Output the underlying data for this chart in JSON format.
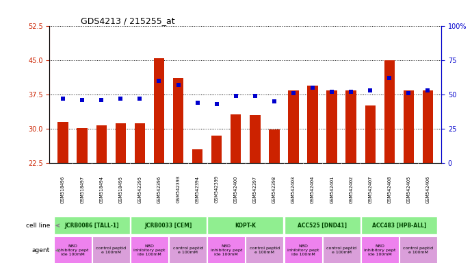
{
  "title": "GDS4213 / 215255_at",
  "samples": [
    "GSM518496",
    "GSM518497",
    "GSM518494",
    "GSM518495",
    "GSM542395",
    "GSM542396",
    "GSM542393",
    "GSM542394",
    "GSM542399",
    "GSM542400",
    "GSM542397",
    "GSM542398",
    "GSM542403",
    "GSM542404",
    "GSM542401",
    "GSM542402",
    "GSM542407",
    "GSM542408",
    "GSM542405",
    "GSM542406"
  ],
  "counts": [
    31.5,
    30.2,
    30.8,
    31.2,
    31.2,
    45.5,
    41.2,
    25.5,
    28.5,
    33.2,
    33.0,
    29.8,
    38.5,
    39.5,
    38.5,
    38.5,
    35.2,
    45.0,
    38.5,
    38.5
  ],
  "percentiles": [
    47,
    46,
    46,
    47,
    47,
    60,
    57,
    44,
    43,
    49,
    49,
    45,
    51,
    55,
    52,
    52,
    53,
    62,
    51,
    53
  ],
  "ylim_left": [
    22.5,
    52.5
  ],
  "yticks_left": [
    22.5,
    30.0,
    37.5,
    45.0,
    52.5
  ],
  "ylim_right": [
    0,
    100
  ],
  "yticks_right": [
    0,
    25,
    50,
    75,
    100
  ],
  "cell_lines": [
    {
      "label": "JCRB0086 [TALL-1]",
      "start": 0,
      "end": 4,
      "color": "#90EE90"
    },
    {
      "label": "JCRB0033 [CEM]",
      "start": 4,
      "end": 8,
      "color": "#90EE90"
    },
    {
      "label": "KOPT-K",
      "start": 8,
      "end": 12,
      "color": "#90EE90"
    },
    {
      "label": "ACC525 [DND41]",
      "start": 12,
      "end": 16,
      "color": "#90EE90"
    },
    {
      "label": "ACC483 [HPB-ALL]",
      "start": 16,
      "end": 20,
      "color": "#90EE90"
    }
  ],
  "agents": [
    {
      "label": "NBD\ninhibitory pept\nide 100mM",
      "start": 0,
      "end": 2,
      "color": "#EE82EE"
    },
    {
      "label": "control peptid\ne 100mM",
      "start": 2,
      "end": 4,
      "color": "#DA9FDA"
    },
    {
      "label": "NBD\ninhibitory pept\nide 100mM",
      "start": 4,
      "end": 6,
      "color": "#EE82EE"
    },
    {
      "label": "control peptid\ne 100mM",
      "start": 6,
      "end": 8,
      "color": "#DA9FDA"
    },
    {
      "label": "NBD\ninhibitory pept\nide 100mM",
      "start": 8,
      "end": 10,
      "color": "#EE82EE"
    },
    {
      "label": "control peptid\ne 100mM",
      "start": 10,
      "end": 12,
      "color": "#DA9FDA"
    },
    {
      "label": "NBD\ninhibitory pept\nide 100mM",
      "start": 12,
      "end": 14,
      "color": "#EE82EE"
    },
    {
      "label": "control peptid\ne 100mM",
      "start": 14,
      "end": 16,
      "color": "#DA9FDA"
    },
    {
      "label": "NBD\ninhibitory pept\nide 100mM",
      "start": 16,
      "end": 18,
      "color": "#EE82EE"
    },
    {
      "label": "control peptid\ne 100mM",
      "start": 18,
      "end": 20,
      "color": "#DA9FDA"
    }
  ],
  "bar_color": "#CC2200",
  "marker_color": "#0000CD",
  "bar_width": 0.55,
  "grid_color": "black",
  "left_axis_color": "#CC2200",
  "right_axis_color": "#0000CD",
  "xticklabel_bg": "#D0D0D0",
  "cell_line_label_color": "#004400",
  "agent_nbd_color": "#EE82EE",
  "agent_ctrl_color": "#DA9FDA"
}
